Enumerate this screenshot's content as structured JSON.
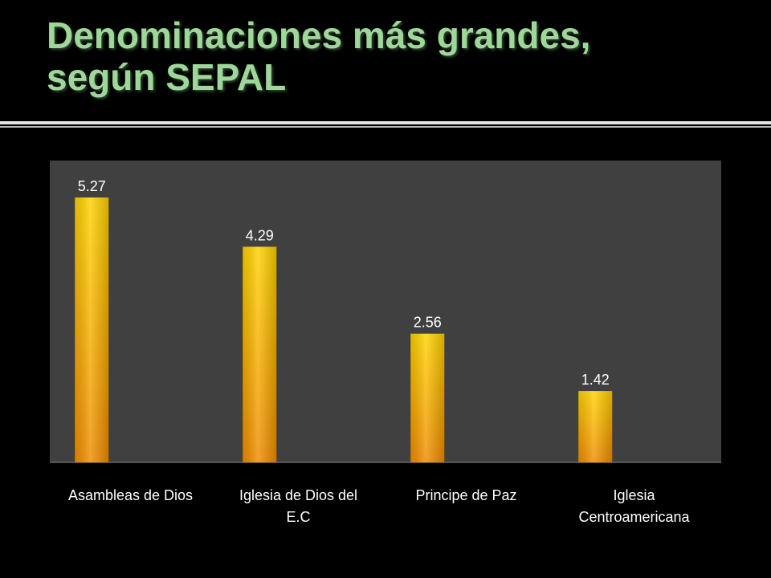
{
  "slide": {
    "title_line1": "Denominaciones más grandes,",
    "title_line2": "según  SEPAL"
  },
  "colors": {
    "background": "#000000",
    "title": "#9fd69a",
    "chart_frame": "#000000",
    "plot_area": "#404040",
    "bar_top": "#ffd200",
    "bar_bottom": "#f08c00",
    "text": "#ffffff"
  },
  "chart_data": {
    "type": "bar",
    "categories": [
      [
        "Asambleas de Dios"
      ],
      [
        "Iglesia de Dios del",
        "E.C"
      ],
      [
        "Principe de Paz"
      ],
      [
        "Iglesia",
        "Centroamericana"
      ]
    ],
    "values": [
      5.27,
      4.29,
      2.56,
      1.42
    ],
    "value_labels": [
      "5.27",
      "4.29",
      "2.56",
      "1.42"
    ],
    "ylim": [
      0,
      6
    ],
    "grid": false,
    "legend": "none"
  }
}
